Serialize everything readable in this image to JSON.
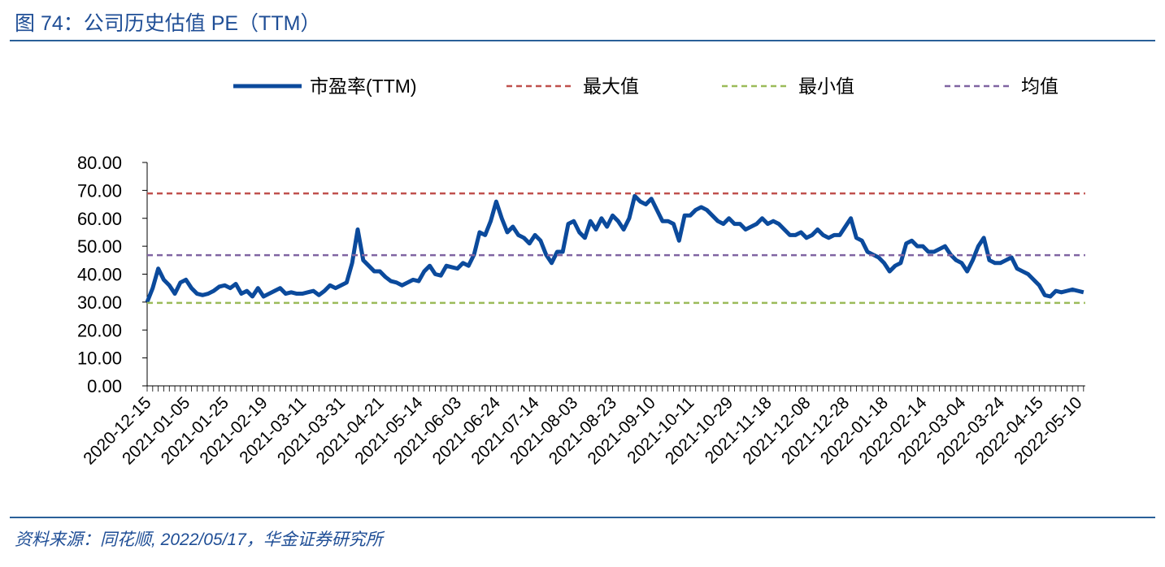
{
  "chart_data": {
    "type": "line",
    "title": "图 74：公司历史估值 PE（TTM）",
    "source": "资料来源：同花顺, 2022/05/17，华金证券研究所",
    "categories": [
      "2020-12-15",
      null,
      null,
      null,
      null,
      null,
      null,
      "2021-01-05",
      null,
      null,
      null,
      null,
      null,
      null,
      "2021-01-25",
      null,
      null,
      null,
      null,
      null,
      null,
      "2021-02-19",
      null,
      null,
      null,
      null,
      null,
      null,
      "2021-03-11",
      null,
      null,
      null,
      null,
      null,
      null,
      "2021-03-31",
      null,
      null,
      null,
      null,
      null,
      null,
      "2021-04-21",
      null,
      null,
      null,
      null,
      null,
      null,
      "2021-05-14",
      null,
      null,
      null,
      null,
      null,
      null,
      "2021-06-03",
      null,
      null,
      null,
      null,
      null,
      null,
      "2021-06-24",
      null,
      null,
      null,
      null,
      null,
      null,
      "2021-07-14",
      null,
      null,
      null,
      null,
      null,
      null,
      "2021-08-03",
      null,
      null,
      null,
      null,
      null,
      null,
      "2021-08-23",
      null,
      null,
      null,
      null,
      null,
      null,
      "2021-09-10",
      null,
      null,
      null,
      null,
      null,
      null,
      "2021-10-11",
      null,
      null,
      null,
      null,
      null,
      null,
      "2021-10-29",
      null,
      null,
      null,
      null,
      null,
      null,
      "2021-11-18",
      null,
      null,
      null,
      null,
      null,
      null,
      "2021-12-08",
      null,
      null,
      null,
      null,
      null,
      null,
      "2021-12-28",
      null,
      null,
      null,
      null,
      null,
      null,
      "2022-01-18",
      null,
      null,
      null,
      null,
      null,
      null,
      "2022-02-14",
      null,
      null,
      null,
      null,
      null,
      null,
      "2022-03-04",
      null,
      null,
      null,
      null,
      null,
      null,
      "2022-03-24",
      null,
      null,
      null,
      null,
      null,
      null,
      "2022-04-15",
      null,
      null,
      null,
      null,
      null,
      null,
      "2022-05-10",
      null
    ],
    "series": [
      {
        "name": "市盈率(TTM)",
        "color": "#0b4a9c",
        "values": [
          30,
          35,
          42,
          38,
          36,
          33,
          37,
          38,
          35,
          33,
          32.5,
          33,
          34,
          35.5,
          36,
          35,
          36.5,
          33,
          34,
          32,
          35,
          32,
          33,
          34,
          35,
          33,
          33.5,
          33,
          33,
          33.5,
          34,
          32.5,
          34,
          36,
          35,
          36,
          37,
          44,
          56,
          45,
          43,
          41,
          41,
          39,
          37.5,
          37,
          36,
          37,
          38,
          37.5,
          41,
          43,
          40,
          39.5,
          43,
          42.5,
          42,
          44,
          43,
          47,
          55,
          54,
          59,
          66,
          60,
          55,
          57,
          54,
          53,
          51,
          54,
          52,
          47,
          44,
          48,
          48,
          58,
          59,
          55,
          53,
          59,
          56,
          60,
          57,
          61,
          59,
          56,
          60,
          68,
          66,
          65,
          67,
          63,
          59,
          59,
          58,
          52,
          61,
          61,
          63,
          64,
          63,
          61,
          59,
          58,
          60,
          58,
          58,
          56,
          57,
          58,
          60,
          58,
          59,
          58,
          56,
          54,
          54,
          55,
          53,
          54,
          56,
          54,
          53,
          54,
          54,
          57,
          60,
          53,
          52,
          48,
          47,
          46,
          44,
          41,
          43,
          44,
          51,
          52,
          50,
          50,
          48,
          48,
          49,
          50,
          47,
          45,
          44,
          41,
          45,
          50,
          53,
          45,
          44,
          44,
          45,
          46,
          42,
          41,
          40,
          38,
          36,
          32.5,
          32,
          34,
          33.5,
          34,
          34.5,
          34,
          33.5
        ]
      },
      {
        "name": "最大值",
        "color": "#c0504d",
        "value": 68.9,
        "dashed": true
      },
      {
        "name": "最小值",
        "color": "#9bbb59",
        "value": 29.7,
        "dashed": true
      },
      {
        "name": "均值",
        "color": "#8064a2",
        "value": 46.8,
        "dashed": true
      }
    ],
    "ylim": [
      0,
      80
    ],
    "yticks": [
      {
        "value": 0,
        "label": "0.00"
      },
      {
        "value": 10,
        "label": "10.00"
      },
      {
        "value": 20,
        "label": "20.00"
      },
      {
        "value": 30,
        "label": "30.00"
      },
      {
        "value": 40,
        "label": "40.00"
      },
      {
        "value": 50,
        "label": "50.00"
      },
      {
        "value": 60,
        "label": "60.00"
      },
      {
        "value": 70,
        "label": "70.00"
      },
      {
        "value": 80,
        "label": "80.00"
      }
    ],
    "grid": false,
    "legend": "top"
  }
}
